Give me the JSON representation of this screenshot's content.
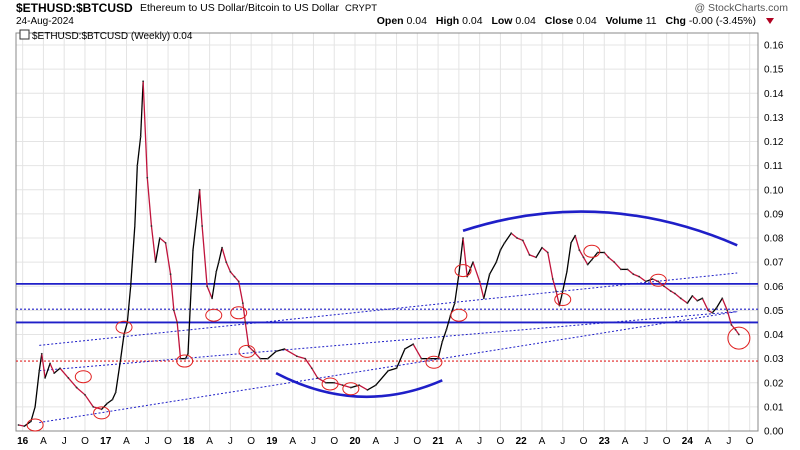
{
  "header": {
    "symbol": "$ETHUSD:$BTCUSD",
    "name": "Ethereum to US Dollar/Bitcoin to US Dollar",
    "exchange": "CRYPT",
    "brand": "@ StockCharts.com",
    "date": "24-Aug-2024",
    "open_label": "Open",
    "open": "0.04",
    "high_label": "High",
    "high": "0.04",
    "low_label": "Low",
    "low": "0.04",
    "close_label": "Close",
    "close": "0.04",
    "volume_label": "Volume",
    "volume": "11",
    "chg_label": "Chg",
    "chg": "-0.00 (-3.45%)"
  },
  "legend": "$ETHUSD:$BTCUSD (Weekly) 0.04",
  "colors": {
    "up": "#000000",
    "down": "#c0143c",
    "trend": "#1f1fc8",
    "support_red": "#e02020",
    "circle": "#e02020"
  },
  "chart_data": {
    "type": "line",
    "scale": "linear",
    "ylim": [
      0,
      0.165
    ],
    "y_ticks": [
      "0.00",
      "0.01",
      "0.02",
      "0.03",
      "0.04",
      "0.05",
      "0.06",
      "0.07",
      "0.08",
      "0.09",
      "0.10",
      "0.11",
      "0.12",
      "0.13",
      "0.14",
      "0.15",
      "0.16"
    ],
    "xlim": [
      2015.92,
      2024.85
    ],
    "x_ticks": [
      {
        "label": "16",
        "t": 2016.0,
        "year": true
      },
      {
        "label": "A",
        "t": 2016.25
      },
      {
        "label": "J",
        "t": 2016.5
      },
      {
        "label": "O",
        "t": 2016.75
      },
      {
        "label": "17",
        "t": 2017.0,
        "year": true
      },
      {
        "label": "A",
        "t": 2017.25
      },
      {
        "label": "J",
        "t": 2017.5
      },
      {
        "label": "O",
        "t": 2017.75
      },
      {
        "label": "18",
        "t": 2018.0,
        "year": true
      },
      {
        "label": "A",
        "t": 2018.25
      },
      {
        "label": "J",
        "t": 2018.5
      },
      {
        "label": "O",
        "t": 2018.75
      },
      {
        "label": "19",
        "t": 2019.0,
        "year": true
      },
      {
        "label": "A",
        "t": 2019.25
      },
      {
        "label": "J",
        "t": 2019.5
      },
      {
        "label": "O",
        "t": 2019.75
      },
      {
        "label": "20",
        "t": 2020.0,
        "year": true
      },
      {
        "label": "A",
        "t": 2020.25
      },
      {
        "label": "J",
        "t": 2020.5
      },
      {
        "label": "O",
        "t": 2020.75
      },
      {
        "label": "21",
        "t": 2021.0,
        "year": true
      },
      {
        "label": "A",
        "t": 2021.25
      },
      {
        "label": "J",
        "t": 2021.5
      },
      {
        "label": "O",
        "t": 2021.75
      },
      {
        "label": "22",
        "t": 2022.0,
        "year": true
      },
      {
        "label": "A",
        "t": 2022.25
      },
      {
        "label": "J",
        "t": 2022.5
      },
      {
        "label": "O",
        "t": 2022.75
      },
      {
        "label": "23",
        "t": 2023.0,
        "year": true
      },
      {
        "label": "A",
        "t": 2023.25
      },
      {
        "label": "J",
        "t": 2023.5
      },
      {
        "label": "O",
        "t": 2023.75
      },
      {
        "label": "24",
        "t": 2024.0,
        "year": true
      },
      {
        "label": "A",
        "t": 2024.25
      },
      {
        "label": "J",
        "t": 2024.5
      },
      {
        "label": "O",
        "t": 2024.75
      }
    ],
    "series": [
      {
        "points": [
          [
            2015.95,
            0.0025
          ],
          [
            2016.02,
            0.002
          ],
          [
            2016.1,
            0.004
          ],
          [
            2016.15,
            0.01
          ],
          [
            2016.2,
            0.025
          ],
          [
            2016.23,
            0.032
          ],
          [
            2016.27,
            0.022
          ],
          [
            2016.33,
            0.028
          ],
          [
            2016.38,
            0.024
          ],
          [
            2016.45,
            0.026
          ],
          [
            2016.55,
            0.022
          ],
          [
            2016.65,
            0.018
          ],
          [
            2016.75,
            0.015
          ],
          [
            2016.85,
            0.01
          ],
          [
            2016.95,
            0.009
          ],
          [
            2017.02,
            0.0115
          ],
          [
            2017.08,
            0.013
          ],
          [
            2017.12,
            0.016
          ],
          [
            2017.18,
            0.03
          ],
          [
            2017.22,
            0.04
          ],
          [
            2017.26,
            0.045
          ],
          [
            2017.3,
            0.06
          ],
          [
            2017.35,
            0.085
          ],
          [
            2017.38,
            0.11
          ],
          [
            2017.42,
            0.122
          ],
          [
            2017.45,
            0.145
          ],
          [
            2017.5,
            0.105
          ],
          [
            2017.55,
            0.085
          ],
          [
            2017.6,
            0.07
          ],
          [
            2017.65,
            0.08
          ],
          [
            2017.72,
            0.078
          ],
          [
            2017.78,
            0.065
          ],
          [
            2017.82,
            0.05
          ],
          [
            2017.86,
            0.045
          ],
          [
            2017.9,
            0.03
          ],
          [
            2017.96,
            0.03
          ],
          [
            2017.99,
            0.032
          ],
          [
            2018.05,
            0.075
          ],
          [
            2018.1,
            0.09
          ],
          [
            2018.13,
            0.1
          ],
          [
            2018.16,
            0.085
          ],
          [
            2018.22,
            0.06
          ],
          [
            2018.28,
            0.055
          ],
          [
            2018.33,
            0.066
          ],
          [
            2018.36,
            0.07
          ],
          [
            2018.4,
            0.076
          ],
          [
            2018.45,
            0.07
          ],
          [
            2018.5,
            0.066
          ],
          [
            2018.55,
            0.064
          ],
          [
            2018.6,
            0.062
          ],
          [
            2018.65,
            0.053
          ],
          [
            2018.68,
            0.045
          ],
          [
            2018.72,
            0.035
          ],
          [
            2018.78,
            0.033
          ],
          [
            2018.86,
            0.03
          ],
          [
            2018.95,
            0.03
          ],
          [
            2019.05,
            0.033
          ],
          [
            2019.15,
            0.034
          ],
          [
            2019.3,
            0.031
          ],
          [
            2019.4,
            0.03
          ],
          [
            2019.48,
            0.026
          ],
          [
            2019.55,
            0.022
          ],
          [
            2019.65,
            0.02
          ],
          [
            2019.75,
            0.02
          ],
          [
            2019.85,
            0.019
          ],
          [
            2019.95,
            0.018
          ],
          [
            2020.05,
            0.019
          ],
          [
            2020.15,
            0.017
          ],
          [
            2020.25,
            0.019
          ],
          [
            2020.4,
            0.025
          ],
          [
            2020.5,
            0.026
          ],
          [
            2020.6,
            0.034
          ],
          [
            2020.7,
            0.036
          ],
          [
            2020.8,
            0.03
          ],
          [
            2020.9,
            0.03
          ],
          [
            2021.0,
            0.03
          ],
          [
            2021.05,
            0.037
          ],
          [
            2021.1,
            0.042
          ],
          [
            2021.15,
            0.048
          ],
          [
            2021.2,
            0.053
          ],
          [
            2021.25,
            0.065
          ],
          [
            2021.3,
            0.08
          ],
          [
            2021.35,
            0.064
          ],
          [
            2021.42,
            0.07
          ],
          [
            2021.5,
            0.062
          ],
          [
            2021.55,
            0.055
          ],
          [
            2021.62,
            0.065
          ],
          [
            2021.7,
            0.07
          ],
          [
            2021.75,
            0.075
          ],
          [
            2021.8,
            0.078
          ],
          [
            2021.88,
            0.082
          ],
          [
            2021.95,
            0.08
          ],
          [
            2022.02,
            0.079
          ],
          [
            2022.1,
            0.073
          ],
          [
            2022.18,
            0.072
          ],
          [
            2022.25,
            0.076
          ],
          [
            2022.32,
            0.074
          ],
          [
            2022.38,
            0.063
          ],
          [
            2022.42,
            0.058
          ],
          [
            2022.46,
            0.052
          ],
          [
            2022.5,
            0.058
          ],
          [
            2022.55,
            0.066
          ],
          [
            2022.6,
            0.078
          ],
          [
            2022.65,
            0.081
          ],
          [
            2022.7,
            0.075
          ],
          [
            2022.75,
            0.072
          ],
          [
            2022.8,
            0.069
          ],
          [
            2022.85,
            0.071
          ],
          [
            2022.92,
            0.074
          ],
          [
            2023.0,
            0.074
          ],
          [
            2023.05,
            0.072
          ],
          [
            2023.12,
            0.07
          ],
          [
            2023.2,
            0.067
          ],
          [
            2023.28,
            0.067
          ],
          [
            2023.35,
            0.065
          ],
          [
            2023.42,
            0.064
          ],
          [
            2023.5,
            0.062
          ],
          [
            2023.58,
            0.063
          ],
          [
            2023.65,
            0.062
          ],
          [
            2023.72,
            0.06
          ],
          [
            2023.8,
            0.058
          ],
          [
            2023.85,
            0.057
          ],
          [
            2023.92,
            0.055
          ],
          [
            2024.0,
            0.053
          ],
          [
            2024.06,
            0.056
          ],
          [
            2024.12,
            0.054
          ],
          [
            2024.18,
            0.055
          ],
          [
            2024.25,
            0.05
          ],
          [
            2024.3,
            0.049
          ],
          [
            2024.35,
            0.051
          ],
          [
            2024.42,
            0.055
          ],
          [
            2024.48,
            0.05
          ],
          [
            2024.53,
            0.044
          ],
          [
            2024.58,
            0.042
          ],
          [
            2024.62,
            0.04
          ]
        ]
      }
    ],
    "annotations": {
      "hlines": [
        {
          "y": 0.061,
          "style": "solid",
          "color": "#1f1fc8"
        },
        {
          "y": 0.045,
          "style": "solid",
          "color": "#1f1fc8"
        },
        {
          "y": 0.0505,
          "style": "dotted",
          "color": "#1f1fc8"
        },
        {
          "y": 0.029,
          "style": "dotted",
          "color": "#e02020"
        }
      ],
      "trendlines": [
        {
          "from": [
            2016.2,
            0.0355
          ],
          "to": [
            2024.6,
            0.0655
          ]
        },
        {
          "from": [
            2016.2,
            0.0035
          ],
          "to": [
            2024.6,
            0.0495
          ]
        },
        {
          "from": [
            2016.2,
            0.025
          ],
          "to": [
            2024.6,
            0.0495
          ]
        }
      ],
      "arcs": [
        {
          "from": [
            2019.05,
            0.024
          ],
          "control": [
            2020.05,
            0.006
          ],
          "to": [
            2021.05,
            0.021
          ]
        },
        {
          "from": [
            2021.3,
            0.083
          ],
          "control": [
            2022.95,
            0.1015
          ],
          "to": [
            2024.6,
            0.077
          ]
        }
      ],
      "circles": [
        [
          2016.15,
          0.0025
        ],
        [
          2016.73,
          0.0225
        ],
        [
          2016.95,
          0.0075
        ],
        [
          2017.22,
          0.043
        ],
        [
          2017.95,
          0.029
        ],
        [
          2018.3,
          0.048
        ],
        [
          2018.6,
          0.049
        ],
        [
          2018.7,
          0.033
        ],
        [
          2019.7,
          0.0195
        ],
        [
          2019.95,
          0.0175
        ],
        [
          2020.95,
          0.0285
        ],
        [
          2021.25,
          0.048
        ],
        [
          2021.3,
          0.0665
        ],
        [
          2022.5,
          0.0545
        ],
        [
          2022.85,
          0.0745
        ],
        [
          2023.65,
          0.0625
        ],
        [
          2024.62,
          0.0385
        ]
      ]
    }
  }
}
